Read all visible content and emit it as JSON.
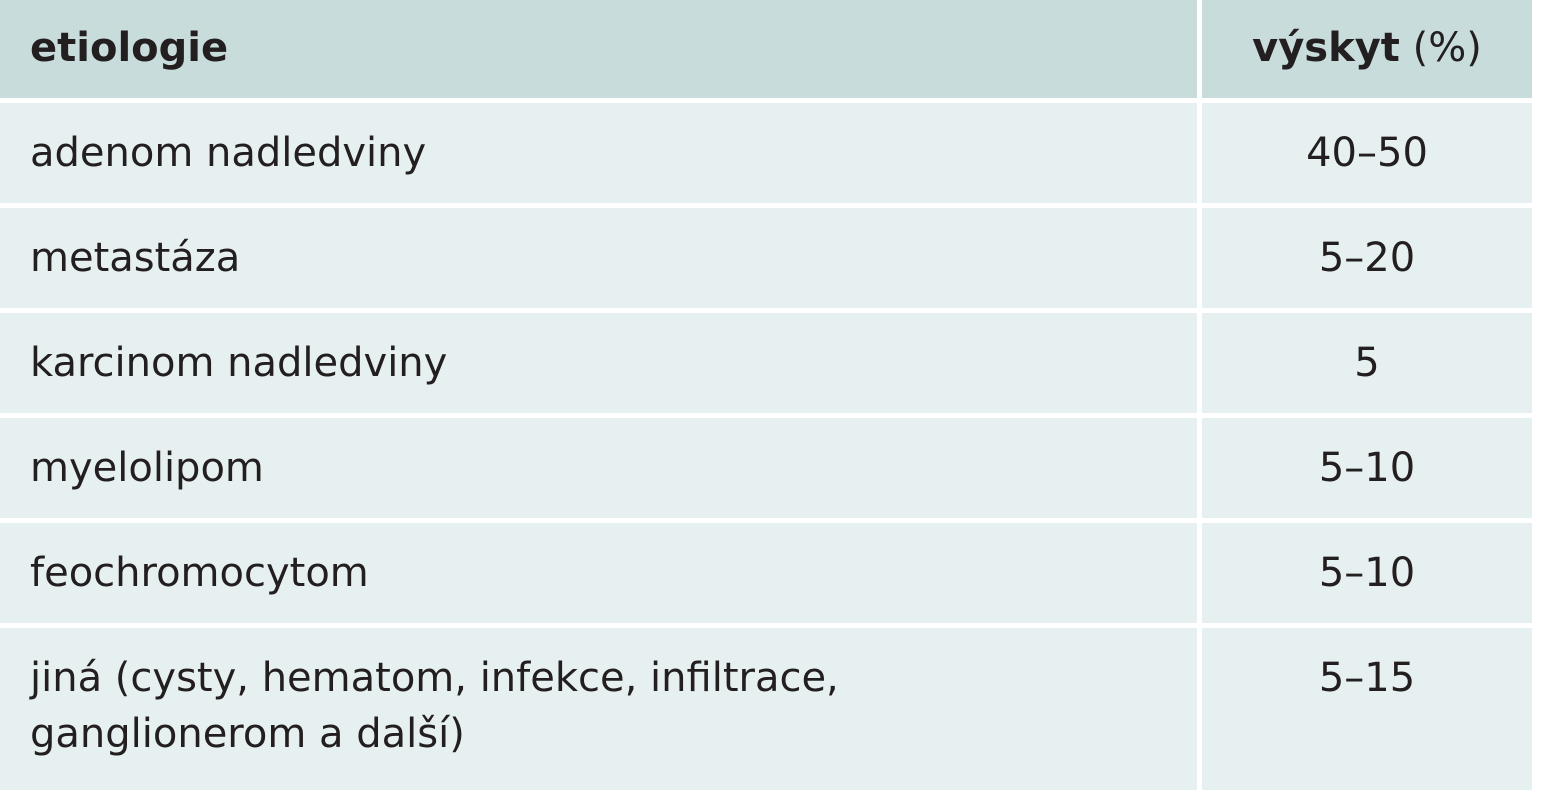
{
  "table": {
    "header": [
      [
        "etiologie"
      ],
      [
        "výskyt",
        "(%)"
      ]
    ],
    "rows": [
      [
        "adenom nadledviny",
        "40–50"
      ],
      [
        "metastáza",
        "5–20"
      ],
      [
        "karcinom nadledviny",
        "5"
      ],
      [
        "myelolipom",
        "5–10"
      ],
      [
        "feochromocytom",
        "5–10"
      ],
      [
        "jiná (cysty, hematom, infekce, infiltrace, ganglionerom a další)",
        "5–15"
      ]
    ]
  }
}
